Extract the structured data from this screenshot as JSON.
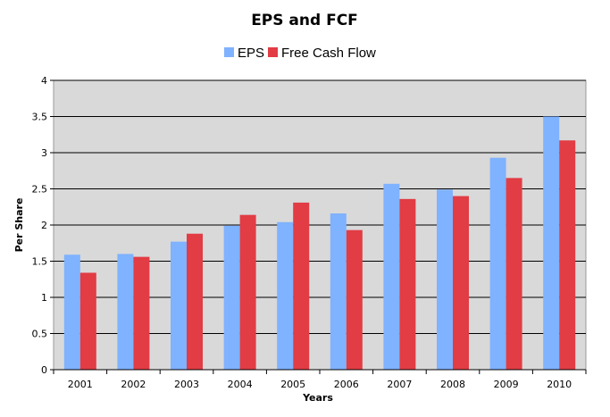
{
  "chart_data": {
    "type": "bar",
    "title": "EPS and FCF",
    "xlabel": "Years",
    "ylabel": "Per Share",
    "categories": [
      "2001",
      "2002",
      "2003",
      "2004",
      "2005",
      "2006",
      "2007",
      "2008",
      "2009",
      "2010"
    ],
    "series": [
      {
        "name": "EPS",
        "color": "#7fb2ff",
        "values": [
          1.59,
          1.6,
          1.77,
          1.99,
          2.04,
          2.16,
          2.57,
          2.49,
          2.93,
          3.5
        ]
      },
      {
        "name": "Free Cash Flow",
        "color": "#e23c45",
        "values": [
          1.34,
          1.56,
          1.88,
          2.14,
          2.31,
          1.93,
          2.36,
          2.4,
          2.65,
          3.17
        ]
      }
    ],
    "ylim": [
      0,
      4
    ],
    "yticks": [
      "0",
      "0.5",
      "1",
      "1.5",
      "2",
      "2.5",
      "3",
      "3.5",
      "4"
    ],
    "grid": true,
    "legend": "top-center",
    "plot_background": "#d9d9d9"
  }
}
